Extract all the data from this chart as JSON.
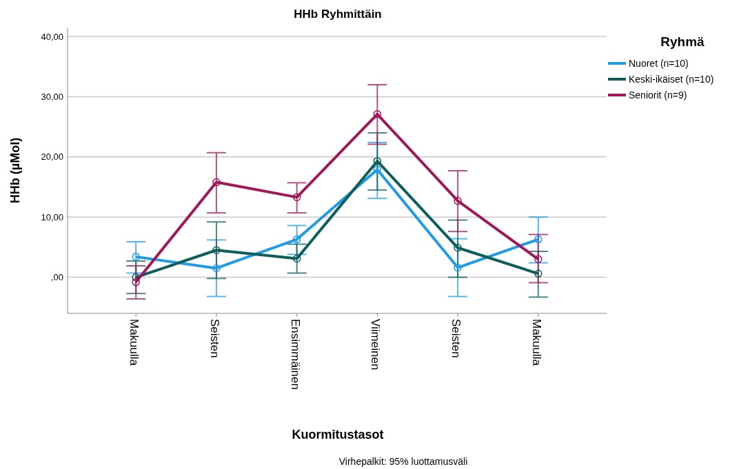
{
  "chart_data": {
    "type": "line",
    "title": "HHb Ryhmittäin",
    "xlabel": "Kuormitustasot",
    "ylabel": "HHb (µMol)",
    "legend_title": "Ryhmä",
    "annotations": [
      "Virhepalkit: 95% luottamusväli"
    ],
    "categories": [
      "Makuulla",
      "Seisten",
      "Ensimmäinen",
      "Viimeinen",
      "Seisten",
      "Makuulla"
    ],
    "ylim": [
      -6,
      41.5
    ],
    "yticks": [
      {
        "value": 0,
        "label": ",00"
      },
      {
        "value": 10,
        "label": "10,00"
      },
      {
        "value": 20,
        "label": "20,00"
      },
      {
        "value": 30,
        "label": "30,00"
      },
      {
        "value": 40,
        "label": "40,00"
      }
    ],
    "grid": "y",
    "legend": "top right",
    "marker": "circle",
    "line_style": "solid",
    "series": [
      {
        "name": "Nuoret (n=10)",
        "color": "#1f9be8",
        "values": [
          3.4,
          1.5,
          6.3,
          17.9,
          1.6,
          6.3
        ],
        "errors": [
          [
            0.7,
            5.9
          ],
          [
            -3.2,
            6.2
          ],
          [
            3.8,
            8.6
          ],
          [
            13.1,
            22.4
          ],
          [
            -3.2,
            6.4
          ],
          [
            2.4,
            10.0
          ]
        ]
      },
      {
        "name": "Keski-ikäiset (n=10)",
        "color": "#0d5f5c",
        "values": [
          0,
          4.5,
          3.1,
          19.3,
          4.9,
          0.6
        ],
        "errors": [
          [
            -2.7,
            2.7
          ],
          [
            -0.2,
            9.2
          ],
          [
            0.7,
            5.5
          ],
          [
            14.5,
            24.0
          ],
          [
            0,
            9.5
          ],
          [
            -3.3,
            4.3
          ]
        ]
      },
      {
        "name": "Seniorit (n=9)",
        "color": "#a0185a",
        "values": [
          -0.8,
          15.8,
          13.3,
          27.1,
          12.7,
          3.0
        ],
        "errors": [
          [
            -3.6,
            1.9
          ],
          [
            10.7,
            20.7
          ],
          [
            10.7,
            15.7
          ],
          [
            22.1,
            32.0
          ],
          [
            7.6,
            17.7
          ],
          [
            -0.9,
            7.1
          ]
        ]
      }
    ]
  }
}
